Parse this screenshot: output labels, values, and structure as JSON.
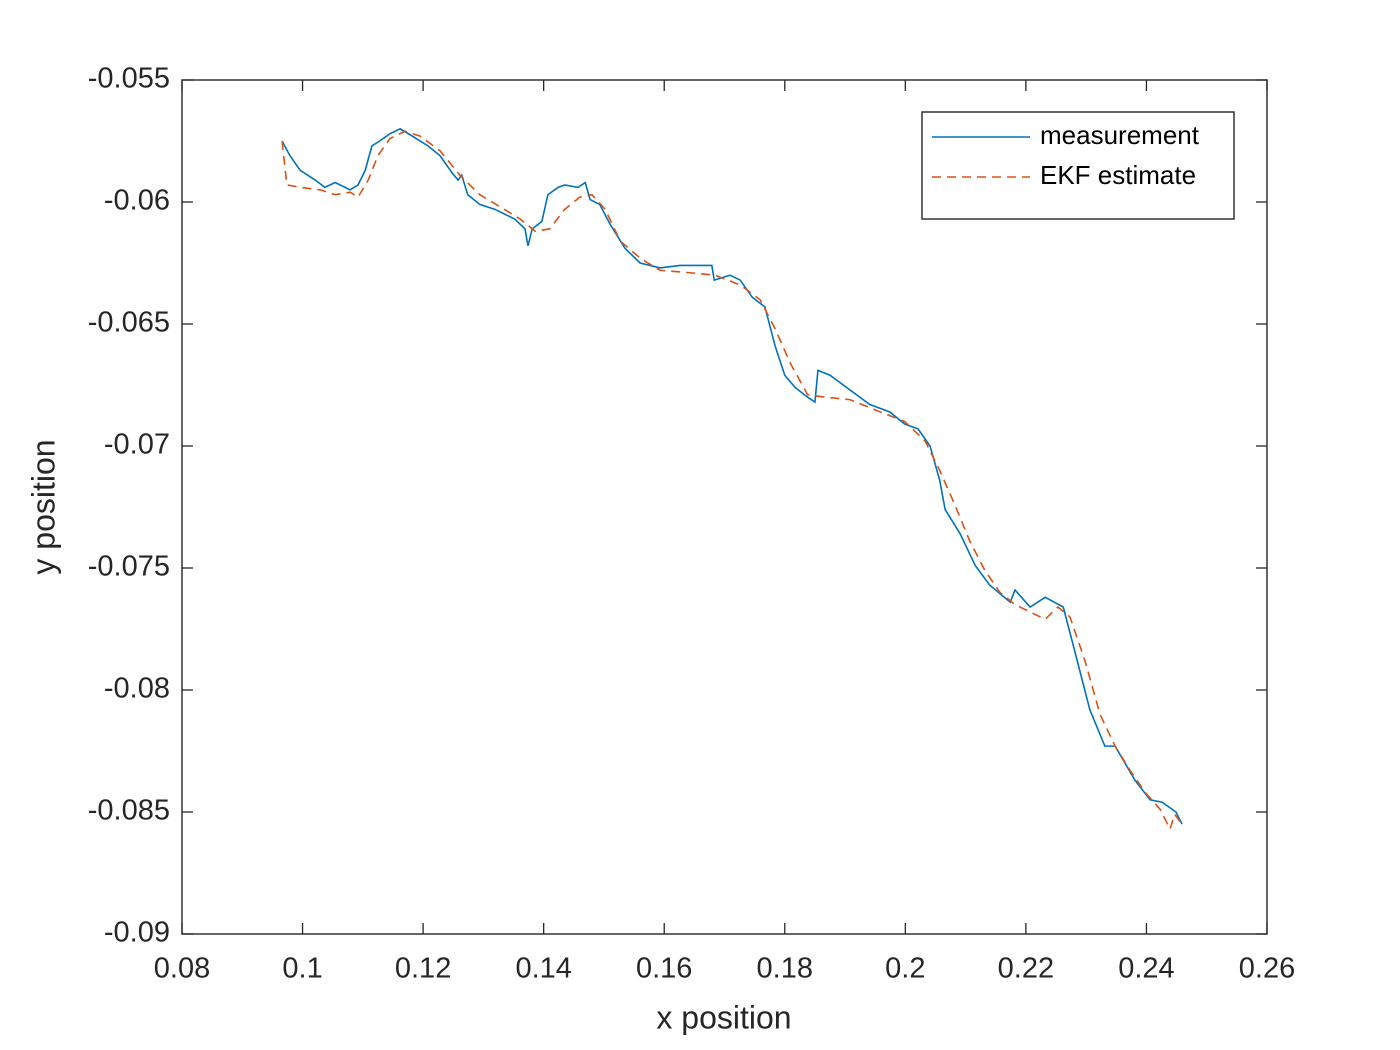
{
  "chart_data": {
    "type": "line",
    "xlabel": "x position",
    "ylabel": "y position",
    "xlim": [
      0.08,
      0.26
    ],
    "ylim": [
      -0.09,
      -0.055
    ],
    "xticks": [
      0.08,
      0.1,
      0.12,
      0.14,
      0.16,
      0.18,
      0.2,
      0.22,
      0.24,
      0.26
    ],
    "yticks": [
      -0.09,
      -0.085,
      -0.08,
      -0.075,
      -0.07,
      -0.065,
      -0.06,
      -0.055
    ],
    "legend": "northeast",
    "box": true,
    "series": [
      {
        "name": "measurement",
        "color": "#0072BD",
        "line_style": "solid",
        "x": [
          0.0966,
          0.0979,
          0.0996,
          0.1021,
          0.1037,
          0.1054,
          0.1079,
          0.1092,
          0.1104,
          0.1115,
          0.1128,
          0.1145,
          0.1162,
          0.1182,
          0.1208,
          0.1228,
          0.1248,
          0.1258,
          0.1264,
          0.1274,
          0.1294,
          0.1319,
          0.1352,
          0.1369,
          0.1374,
          0.1381,
          0.1397,
          0.1407,
          0.1424,
          0.1435,
          0.1457,
          0.1469,
          0.1477,
          0.1493,
          0.151,
          0.1535,
          0.156,
          0.1593,
          0.1626,
          0.1659,
          0.1679,
          0.1683,
          0.1709,
          0.1726,
          0.1746,
          0.1767,
          0.1784,
          0.18,
          0.1817,
          0.1838,
          0.185,
          0.1855,
          0.1875,
          0.1908,
          0.1941,
          0.1974,
          0.1999,
          0.2021,
          0.2041,
          0.2057,
          0.2066,
          0.2091,
          0.2116,
          0.214,
          0.2174,
          0.2182,
          0.2207,
          0.2232,
          0.2262,
          0.2281,
          0.2306,
          0.2331,
          0.2348,
          0.2381,
          0.2406,
          0.2426,
          0.2449,
          0.2459
        ],
        "values": [
          -0.0575,
          -0.0581,
          -0.0587,
          -0.0591,
          -0.0594,
          -0.0592,
          -0.0595,
          -0.0593,
          -0.0587,
          -0.0577,
          -0.0575,
          -0.0572,
          -0.057,
          -0.0573,
          -0.0577,
          -0.0581,
          -0.0588,
          -0.0591,
          -0.0589,
          -0.0597,
          -0.0601,
          -0.0603,
          -0.0607,
          -0.0611,
          -0.0618,
          -0.0611,
          -0.0608,
          -0.0597,
          -0.0594,
          -0.0593,
          -0.0594,
          -0.0592,
          -0.0599,
          -0.0601,
          -0.0609,
          -0.0619,
          -0.0625,
          -0.0627,
          -0.0626,
          -0.0626,
          -0.0626,
          -0.0632,
          -0.063,
          -0.0632,
          -0.0639,
          -0.0643,
          -0.0659,
          -0.0671,
          -0.0676,
          -0.068,
          -0.0682,
          -0.0669,
          -0.0671,
          -0.0677,
          -0.0683,
          -0.0686,
          -0.0691,
          -0.0693,
          -0.07,
          -0.0714,
          -0.0726,
          -0.0736,
          -0.0749,
          -0.0757,
          -0.0764,
          -0.0759,
          -0.0766,
          -0.0762,
          -0.0766,
          -0.0784,
          -0.0808,
          -0.0823,
          -0.0823,
          -0.0837,
          -0.0845,
          -0.0846,
          -0.085,
          -0.0855
        ]
      },
      {
        "name": "EKF estimate",
        "color": "#D95319",
        "line_style": "dashed",
        "x": [
          0.0966,
          0.0974,
          0.0996,
          0.1029,
          0.1054,
          0.1079,
          0.1092,
          0.1109,
          0.1125,
          0.1145,
          0.117,
          0.1195,
          0.1228,
          0.1261,
          0.1294,
          0.1328,
          0.1361,
          0.1386,
          0.141,
          0.1435,
          0.146,
          0.148,
          0.1502,
          0.1527,
          0.156,
          0.1593,
          0.1643,
          0.1684,
          0.1726,
          0.1759,
          0.1784,
          0.1809,
          0.1838,
          0.1867,
          0.1908,
          0.1958,
          0.1999,
          0.2033,
          0.2057,
          0.2082,
          0.2107,
          0.2132,
          0.2157,
          0.2182,
          0.2215,
          0.2232,
          0.2253,
          0.2273,
          0.2298,
          0.2323,
          0.2348,
          0.2373,
          0.2398,
          0.2423,
          0.2439,
          0.2447,
          0.2459
        ],
        "values": [
          -0.0575,
          -0.0593,
          -0.0594,
          -0.0595,
          -0.0597,
          -0.0596,
          -0.0598,
          -0.0591,
          -0.0581,
          -0.0574,
          -0.0571,
          -0.0573,
          -0.0579,
          -0.0589,
          -0.0597,
          -0.0602,
          -0.0607,
          -0.0612,
          -0.0611,
          -0.0603,
          -0.0598,
          -0.0597,
          -0.0603,
          -0.0616,
          -0.0623,
          -0.0628,
          -0.0629,
          -0.063,
          -0.0634,
          -0.064,
          -0.0652,
          -0.0666,
          -0.0679,
          -0.068,
          -0.0681,
          -0.0686,
          -0.069,
          -0.0698,
          -0.071,
          -0.0724,
          -0.0739,
          -0.0751,
          -0.076,
          -0.0765,
          -0.0769,
          -0.0771,
          -0.0766,
          -0.077,
          -0.0788,
          -0.081,
          -0.0823,
          -0.0833,
          -0.0842,
          -0.0849,
          -0.0857,
          -0.0851,
          -0.0855
        ]
      }
    ]
  }
}
